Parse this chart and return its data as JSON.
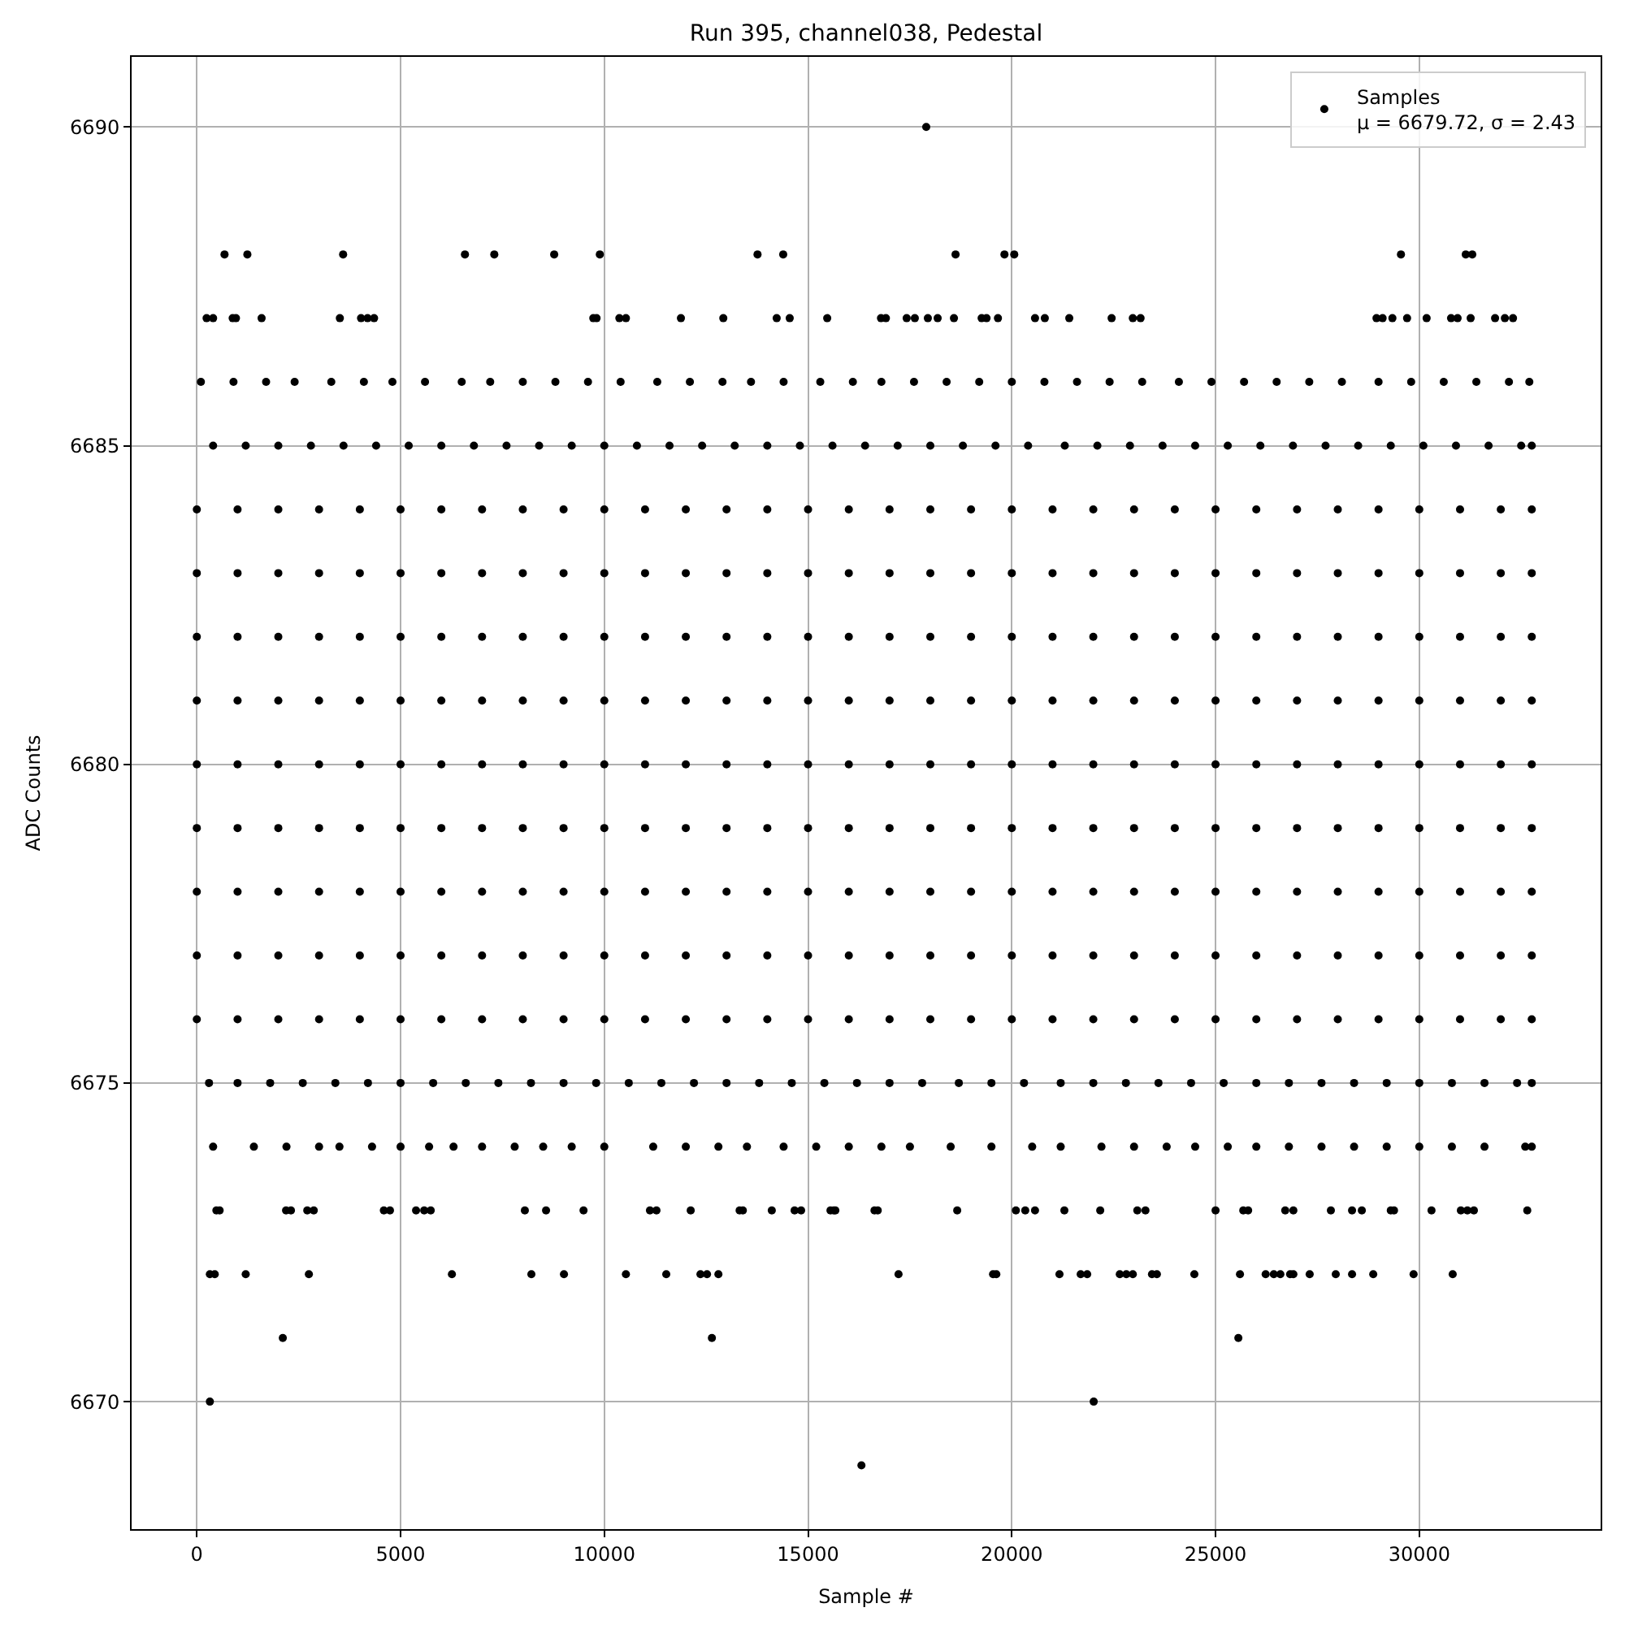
{
  "chart_data": {
    "type": "scatter",
    "title": "Run 395, channel038, Pedestal",
    "xlabel": "Sample #",
    "ylabel": "ADC Counts",
    "xlim": [
      -1600,
      34450
    ],
    "ylim": [
      6668,
      6691.1
    ],
    "xticks": [
      0,
      5000,
      10000,
      15000,
      20000,
      25000,
      30000
    ],
    "yticks": [
      6670,
      6675,
      6680,
      6685,
      6690
    ],
    "grid": true,
    "legend": "top right",
    "marker": "circle",
    "series": [
      {
        "name": "Samples\nμ = 6679.72, σ = 2.43",
        "color": "#000000",
        "x": [
          17900,
          16310,
          320,
          22010,
          2110,
          12640,
          25560,
          680,
          1240,
          3590,
          6580,
          7300,
          8770,
          9890,
          13760,
          14390,
          18620,
          19820,
          20060,
          29550,
          31140,
          31300,
          240,
          400,
          880,
          960,
          1590,
          3510,
          4030,
          4190,
          4350,
          9730,
          9810,
          10370,
          10530,
          11880,
          12920,
          14230,
          14550,
          15470,
          16790,
          16910,
          17420,
          17620,
          17940,
          18180,
          18580,
          19260,
          19380,
          19660,
          20570,
          20810,
          21410,
          22450,
          22970,
          23160,
          28950,
          29100,
          29340,
          29700,
          30180,
          30780,
          30940,
          31260,
          31860,
          32100,
          32300,
          320,
          440,
          1200,
          2750,
          6260,
          8210,
          9010,
          10530,
          11520,
          12360,
          12520,
          12800,
          17220,
          19540,
          19620,
          21170,
          21690,
          21850,
          22650,
          22810,
          22970,
          23440,
          23560,
          24480,
          25600,
          26230,
          26430,
          26590,
          26830,
          26910,
          27310,
          27950,
          28350,
          28870,
          29860,
          30820,
          480,
          560,
          2190,
          2310,
          2710,
          2870,
          4590,
          4740,
          5380,
          5580,
          5740,
          8050,
          8570,
          9490,
          11120,
          11280,
          12120,
          13320,
          13400,
          14110,
          14670,
          14830,
          15550,
          15630,
          15670,
          16630,
          16710,
          18660,
          20100,
          20330,
          20570,
          21290,
          22170,
          23080,
          23280,
          25000,
          25680,
          25800,
          26710,
          26910,
          27830,
          28350,
          28590,
          29300,
          29380,
          30300,
          31020,
          31180,
          31340,
          32650,
          400,
          1400,
          2200,
          3000,
          3500,
          4300,
          5000,
          5700,
          6300,
          7000,
          7800,
          8500,
          9200,
          10000,
          11200,
          12000,
          12800,
          13500,
          14400,
          15200,
          16000,
          16800,
          17500,
          18500,
          19500,
          20500,
          21200,
          22200,
          23000,
          23800,
          24500,
          25300,
          26000,
          26800,
          27600,
          28400,
          29200,
          30000,
          30800,
          31600,
          32600,
          32760,
          300,
          1000,
          1800,
          2600,
          3400,
          4200,
          5000,
          5800,
          6600,
          7400,
          8200,
          9000,
          9800,
          10600,
          11400,
          12200,
          13000,
          13800,
          14600,
          15400,
          16200,
          17000,
          17800,
          18700,
          19500,
          20300,
          21200,
          22000,
          22800,
          23600,
          24400,
          25200,
          26000,
          26800,
          27600,
          28400,
          29200,
          30000,
          30800,
          31600,
          32400,
          32760,
          400,
          1200,
          2000,
          2800,
          3600,
          4400,
          5200,
          6000,
          6800,
          7600,
          8400,
          9200,
          10000,
          10800,
          11600,
          12400,
          13200,
          14000,
          14800,
          15600,
          16400,
          17200,
          18000,
          18800,
          19600,
          20400,
          21300,
          22100,
          22900,
          23700,
          24500,
          25300,
          26100,
          26900,
          27700,
          28500,
          29300,
          30100,
          30900,
          31700,
          32500,
          32760,
          100,
          900,
          1700,
          2400,
          3300,
          4100,
          4800,
          5600,
          6500,
          7200,
          8000,
          8800,
          9600,
          10400,
          11300,
          12100,
          12900,
          13600,
          14400,
          15300,
          16100,
          16800,
          17600,
          18400,
          19200,
          20000,
          20800,
          21600,
          22400,
          23200,
          24100,
          24900,
          25700,
          26500,
          27300,
          28100,
          29000,
          29800,
          30600,
          31400,
          32200,
          32700,
          0,
          1000,
          2000,
          3000,
          4000,
          5000,
          6000,
          7000,
          8000,
          9000,
          10000,
          11000,
          12000,
          13000,
          14000,
          15000,
          16000,
          17000,
          18000,
          19000,
          20000,
          21000,
          22000,
          23000,
          24000,
          25000,
          26000,
          27000,
          28000,
          29000,
          30000,
          31000,
          32000,
          32760,
          0,
          1000,
          2000,
          3000,
          4000,
          5000,
          6000,
          7000,
          8000,
          9000,
          10000,
          11000,
          12000,
          13000,
          14000,
          15000,
          16000,
          17000,
          18000,
          19000,
          20000,
          21000,
          22000,
          23000,
          24000,
          25000,
          26000,
          27000,
          28000,
          29000,
          30000,
          31000,
          32000,
          32760,
          0,
          1000,
          2000,
          3000,
          4000,
          5000,
          6000,
          7000,
          8000,
          9000,
          10000,
          11000,
          12000,
          13000,
          14000,
          15000,
          16000,
          17000,
          18000,
          19000,
          20000,
          21000,
          22000,
          23000,
          24000,
          25000,
          26000,
          27000,
          28000,
          29000,
          30000,
          31000,
          32000,
          32760,
          0,
          1000,
          2000,
          3000,
          4000,
          5000,
          6000,
          7000,
          8000,
          9000,
          10000,
          11000,
          12000,
          13000,
          14000,
          15000,
          16000,
          17000,
          18000,
          19000,
          20000,
          21000,
          22000,
          23000,
          24000,
          25000,
          26000,
          27000,
          28000,
          29000,
          30000,
          31000,
          32000,
          32760,
          0,
          1000,
          2000,
          3000,
          4000,
          5000,
          6000,
          7000,
          8000,
          9000,
          10000,
          11000,
          12000,
          13000,
          14000,
          15000,
          16000,
          17000,
          18000,
          19000,
          20000,
          21000,
          22000,
          23000,
          24000,
          25000,
          26000,
          27000,
          28000,
          29000,
          30000,
          31000,
          32000,
          32760,
          0,
          1000,
          2000,
          3000,
          4000,
          5000,
          6000,
          7000,
          8000,
          9000,
          10000,
          11000,
          12000,
          13000,
          14000,
          15000,
          16000,
          17000,
          18000,
          19000,
          20000,
          21000,
          22000,
          23000,
          24000,
          25000,
          26000,
          27000,
          28000,
          29000,
          30000,
          31000,
          32000,
          32760,
          0,
          1000,
          2000,
          3000,
          4000,
          5000,
          6000,
          7000,
          8000,
          9000,
          10000,
          11000,
          12000,
          13000,
          14000,
          15000,
          16000,
          17000,
          18000,
          19000,
          20000,
          21000,
          22000,
          23000,
          24000,
          25000,
          26000,
          27000,
          28000,
          29000,
          30000,
          31000,
          32000,
          32760,
          0,
          1000,
          2000,
          3000,
          4000,
          5000,
          6000,
          7000,
          8000,
          9000,
          10000,
          11000,
          12000,
          13000,
          14000,
          15000,
          16000,
          17000,
          18000,
          19000,
          20000,
          21000,
          22000,
          23000,
          24000,
          25000,
          26000,
          27000,
          28000,
          29000,
          30000,
          31000,
          32000,
          32760,
          0,
          1000,
          2000,
          3000,
          4000,
          5000,
          6000,
          7000,
          8000,
          9000,
          10000,
          11000,
          12000,
          13000,
          14000,
          15000,
          16000,
          17000,
          18000,
          19000,
          20000,
          21000,
          22000,
          23000,
          24000,
          25000,
          26000,
          27000,
          28000,
          29000,
          30000,
          31000,
          32000,
          32760
        ],
        "values": [
          6690,
          6669,
          6670,
          6670,
          6671,
          6671,
          6671,
          6688,
          6688,
          6688,
          6688,
          6688,
          6688,
          6688,
          6688,
          6688,
          6688,
          6688,
          6688,
          6688,
          6688,
          6688,
          6687,
          6687,
          6687,
          6687,
          6687,
          6687,
          6687,
          6687,
          6687,
          6687,
          6687,
          6687,
          6687,
          6687,
          6687,
          6687,
          6687,
          6687,
          6687,
          6687,
          6687,
          6687,
          6687,
          6687,
          6687,
          6687,
          6687,
          6687,
          6687,
          6687,
          6687,
          6687,
          6687,
          6687,
          6687,
          6687,
          6687,
          6687,
          6687,
          6687,
          6687,
          6687,
          6687,
          6687,
          6687,
          6672,
          6672,
          6672,
          6672,
          6672,
          6672,
          6672,
          6672,
          6672,
          6672,
          6672,
          6672,
          6672,
          6672,
          6672,
          6672,
          6672,
          6672,
          6672,
          6672,
          6672,
          6672,
          6672,
          6672,
          6672,
          6672,
          6672,
          6672,
          6672,
          6672,
          6672,
          6672,
          6672,
          6672,
          6672,
          6672,
          6673,
          6673,
          6673,
          6673,
          6673,
          6673,
          6673,
          6673,
          6673,
          6673,
          6673,
          6673,
          6673,
          6673,
          6673,
          6673,
          6673,
          6673,
          6673,
          6673,
          6673,
          6673,
          6673,
          6673,
          6673,
          6673,
          6673,
          6673,
          6673,
          6673,
          6673,
          6673,
          6673,
          6673,
          6673,
          6673,
          6673,
          6673,
          6673,
          6673,
          6673,
          6673,
          6673,
          6673,
          6673,
          6673,
          6673,
          6673,
          6673,
          6673,
          6674,
          6674,
          6674,
          6674,
          6674,
          6674,
          6674,
          6674,
          6674,
          6674,
          6674,
          6674,
          6674,
          6674,
          6674,
          6674,
          6674,
          6674,
          6674,
          6674,
          6674,
          6674,
          6674,
          6674,
          6674,
          6674,
          6674,
          6674,
          6674,
          6674,
          6674,
          6674,
          6674,
          6674,
          6674,
          6674,
          6674,
          6674,
          6674,
          6674,
          6674,
          6674,
          6675,
          6675,
          6675,
          6675,
          6675,
          6675,
          6675,
          6675,
          6675,
          6675,
          6675,
          6675,
          6675,
          6675,
          6675,
          6675,
          6675,
          6675,
          6675,
          6675,
          6675,
          6675,
          6675,
          6675,
          6675,
          6675,
          6675,
          6675,
          6675,
          6675,
          6675,
          6675,
          6675,
          6675,
          6675,
          6675,
          6675,
          6675,
          6675,
          6675,
          6675,
          6675,
          6685,
          6685,
          6685,
          6685,
          6685,
          6685,
          6685,
          6685,
          6685,
          6685,
          6685,
          6685,
          6685,
          6685,
          6685,
          6685,
          6685,
          6685,
          6685,
          6685,
          6685,
          6685,
          6685,
          6685,
          6685,
          6685,
          6685,
          6685,
          6685,
          6685,
          6685,
          6685,
          6685,
          6685,
          6685,
          6685,
          6685,
          6685,
          6685,
          6685,
          6685,
          6685,
          6686,
          6686,
          6686,
          6686,
          6686,
          6686,
          6686,
          6686,
          6686,
          6686,
          6686,
          6686,
          6686,
          6686,
          6686,
          6686,
          6686,
          6686,
          6686,
          6686,
          6686,
          6686,
          6686,
          6686,
          6686,
          6686,
          6686,
          6686,
          6686,
          6686,
          6686,
          6686,
          6686,
          6686,
          6686,
          6686,
          6686,
          6686,
          6686,
          6686,
          6686,
          6686,
          6676,
          6676,
          6676,
          6676,
          6676,
          6676,
          6676,
          6676,
          6676,
          6676,
          6676,
          6676,
          6676,
          6676,
          6676,
          6676,
          6676,
          6676,
          6676,
          6676,
          6676,
          6676,
          6676,
          6676,
          6676,
          6676,
          6676,
          6676,
          6676,
          6676,
          6676,
          6676,
          6676,
          6676,
          6677,
          6677,
          6677,
          6677,
          6677,
          6677,
          6677,
          6677,
          6677,
          6677,
          6677,
          6677,
          6677,
          6677,
          6677,
          6677,
          6677,
          6677,
          6677,
          6677,
          6677,
          6677,
          6677,
          6677,
          6677,
          6677,
          6677,
          6677,
          6677,
          6677,
          6677,
          6677,
          6677,
          6677,
          6678,
          6678,
          6678,
          6678,
          6678,
          6678,
          6678,
          6678,
          6678,
          6678,
          6678,
          6678,
          6678,
          6678,
          6678,
          6678,
          6678,
          6678,
          6678,
          6678,
          6678,
          6678,
          6678,
          6678,
          6678,
          6678,
          6678,
          6678,
          6678,
          6678,
          6678,
          6678,
          6678,
          6678,
          6679,
          6679,
          6679,
          6679,
          6679,
          6679,
          6679,
          6679,
          6679,
          6679,
          6679,
          6679,
          6679,
          6679,
          6679,
          6679,
          6679,
          6679,
          6679,
          6679,
          6679,
          6679,
          6679,
          6679,
          6679,
          6679,
          6679,
          6679,
          6679,
          6679,
          6679,
          6679,
          6679,
          6679,
          6680,
          6680,
          6680,
          6680,
          6680,
          6680,
          6680,
          6680,
          6680,
          6680,
          6680,
          6680,
          6680,
          6680,
          6680,
          6680,
          6680,
          6680,
          6680,
          6680,
          6680,
          6680,
          6680,
          6680,
          6680,
          6680,
          6680,
          6680,
          6680,
          6680,
          6680,
          6680,
          6680,
          6680,
          6681,
          6681,
          6681,
          6681,
          6681,
          6681,
          6681,
          6681,
          6681,
          6681,
          6681,
          6681,
          6681,
          6681,
          6681,
          6681,
          6681,
          6681,
          6681,
          6681,
          6681,
          6681,
          6681,
          6681,
          6681,
          6681,
          6681,
          6681,
          6681,
          6681,
          6681,
          6681,
          6681,
          6681,
          6682,
          6682,
          6682,
          6682,
          6682,
          6682,
          6682,
          6682,
          6682,
          6682,
          6682,
          6682,
          6682,
          6682,
          6682,
          6682,
          6682,
          6682,
          6682,
          6682,
          6682,
          6682,
          6682,
          6682,
          6682,
          6682,
          6682,
          6682,
          6682,
          6682,
          6682,
          6682,
          6682,
          6682,
          6683,
          6683,
          6683,
          6683,
          6683,
          6683,
          6683,
          6683,
          6683,
          6683,
          6683,
          6683,
          6683,
          6683,
          6683,
          6683,
          6683,
          6683,
          6683,
          6683,
          6683,
          6683,
          6683,
          6683,
          6683,
          6683,
          6683,
          6683,
          6683,
          6683,
          6683,
          6683,
          6683,
          6683,
          6684,
          6684,
          6684,
          6684,
          6684,
          6684,
          6684,
          6684,
          6684,
          6684,
          6684,
          6684,
          6684,
          6684,
          6684,
          6684,
          6684,
          6684,
          6684,
          6684,
          6684,
          6684,
          6684,
          6684,
          6684,
          6684,
          6684,
          6684,
          6684,
          6684,
          6684,
          6684,
          6684,
          6684
        ]
      }
    ]
  }
}
